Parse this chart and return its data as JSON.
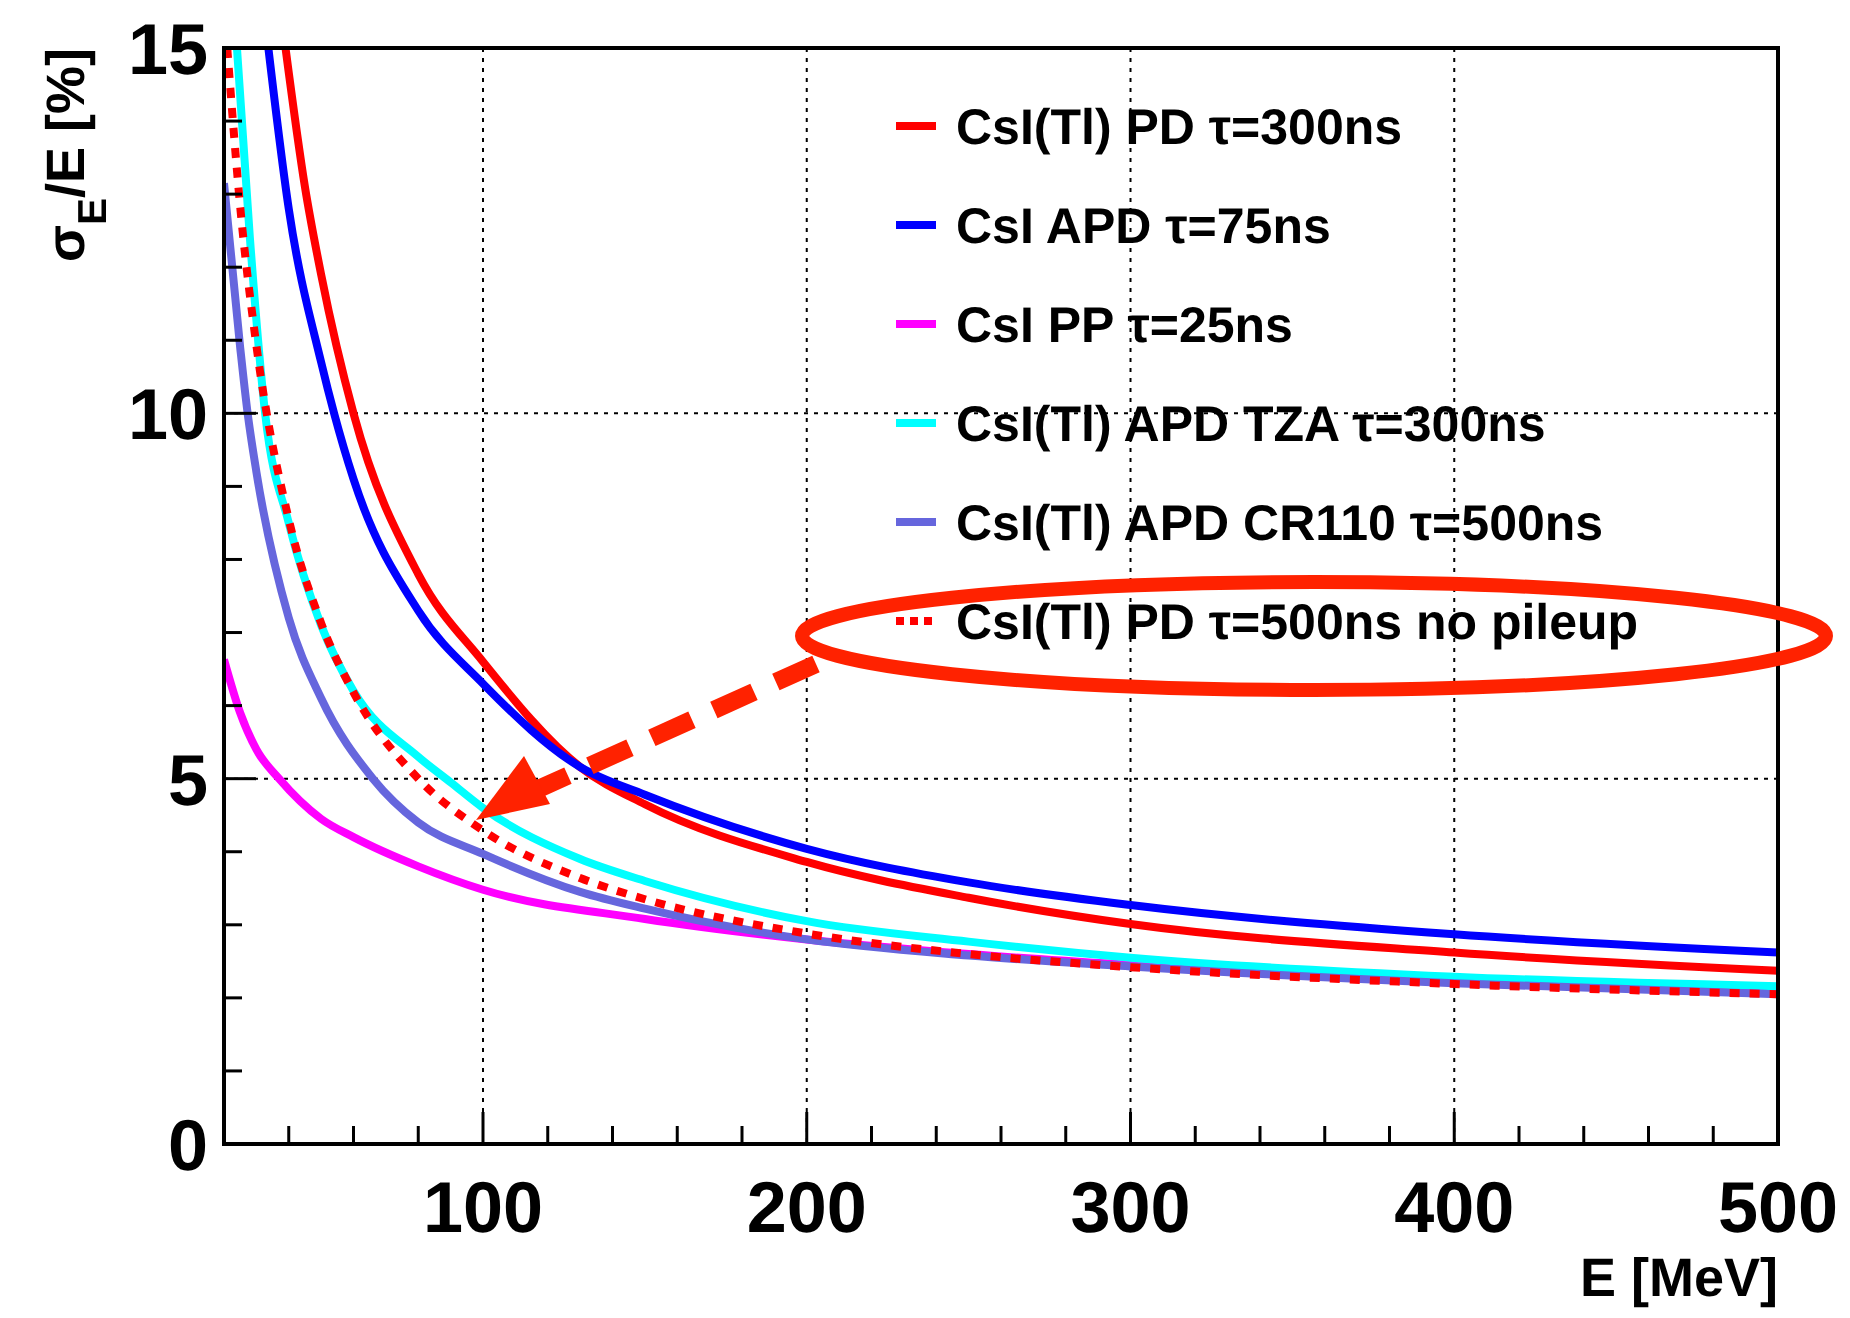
{
  "chart_data": {
    "type": "line",
    "xlabel": "E [MeV]",
    "ylabel": "σ$_{E}$/E [%]",
    "xlim": [
      20,
      500
    ],
    "ylim": [
      0,
      15
    ],
    "xticks": [
      {
        "value": 20,
        "label": null
      },
      {
        "value": 40,
        "label": null
      },
      {
        "value": 60,
        "label": null
      },
      {
        "value": 80,
        "label": null
      },
      100,
      {
        "value": 120,
        "label": null
      },
      {
        "value": 140,
        "label": null
      },
      {
        "value": 160,
        "label": null
      },
      {
        "value": 180,
        "label": null
      },
      200,
      {
        "value": 220,
        "label": null
      },
      {
        "value": 240,
        "label": null
      },
      {
        "value": 260,
        "label": null
      },
      {
        "value": 280,
        "label": null
      },
      300,
      {
        "value": 320,
        "label": null
      },
      {
        "value": 340,
        "label": null
      },
      {
        "value": 360,
        "label": null
      },
      {
        "value": 380,
        "label": null
      },
      400,
      {
        "value": 420,
        "label": null
      },
      {
        "value": 440,
        "label": null
      },
      {
        "value": 460,
        "label": null
      },
      {
        "value": 480,
        "label": null
      },
      500
    ],
    "yticks": [
      0,
      {
        "value": 1,
        "label": null
      },
      {
        "value": 2,
        "label": null
      },
      {
        "value": 3,
        "label": null
      },
      {
        "value": 4,
        "label": null
      },
      5,
      {
        "value": 6,
        "label": null
      },
      {
        "value": 7,
        "label": null
      },
      {
        "value": 8,
        "label": null
      },
      {
        "value": 9,
        "label": null
      },
      10,
      {
        "value": 11,
        "label": null
      },
      {
        "value": 12,
        "label": null
      },
      {
        "value": 13,
        "label": null
      },
      {
        "value": 14,
        "label": null
      },
      15
    ],
    "grid": true,
    "legend": "top right",
    "marker": "none",
    "series": [
      {
        "name": "CsI(Tl) PD τ=300ns",
        "color": "#ff0000",
        "line_style": "solid",
        "x": [
          39,
          45,
          50,
          60,
          80,
          100,
          130,
          150,
          200,
          250,
          300,
          400,
          500
        ],
        "values": [
          15,
          13.1,
          11.9,
          10,
          7.8,
          6.6,
          5.16,
          4.65,
          3.86,
          3.37,
          3.01,
          2.62,
          2.37
        ]
      },
      {
        "name": "CsI APD τ=75ns",
        "color": "#0000ff",
        "line_style": "solid",
        "x": [
          33.7,
          40,
          50,
          54,
          60,
          80,
          100,
          130,
          150,
          200,
          250,
          300,
          400,
          500
        ],
        "values": [
          15,
          12.8,
          10.7,
          10,
          9.1,
          7.3,
          6.3,
          5.16,
          4.78,
          4.04,
          3.58,
          3.27,
          2.87,
          2.62
        ]
      },
      {
        "name": "CsI PP τ=25ns",
        "color": "#ff00ff",
        "line_style": "solid",
        "x": [
          20,
          25,
          30,
          37,
          50,
          60,
          80,
          100,
          150,
          200,
          250,
          300,
          400,
          500
        ],
        "values": [
          6.63,
          5.9,
          5.4,
          5,
          4.45,
          4.2,
          3.8,
          3.48,
          3.08,
          2.8,
          2.6,
          2.45,
          2.22,
          2.06
        ]
      },
      {
        "name": "CsI(Tl) APD TZA τ=300ns",
        "color": "#00ffff",
        "line_style": "solid",
        "x": [
          24,
          28,
          32.7,
          40,
          50,
          60,
          80,
          90,
          100,
          130,
          150,
          200,
          250,
          300,
          400,
          500
        ],
        "values": [
          15,
          12.4,
          10,
          8.5,
          7.1,
          6.2,
          5.3,
          4.95,
          4.6,
          3.9,
          3.6,
          3.05,
          2.77,
          2.55,
          2.29,
          2.16
        ]
      },
      {
        "name": "CsI(Tl) APD CR110 τ=500ns",
        "color": "#6666dd",
        "line_style": "solid",
        "x": [
          20,
          25,
          27.3,
          30,
          40,
          50,
          66,
          80,
          100,
          130,
          150,
          200,
          250,
          300,
          400,
          500
        ],
        "values": [
          13.15,
          10.9,
          10,
          9.2,
          7.2,
          6.1,
          5,
          4.4,
          3.97,
          3.45,
          3.22,
          2.8,
          2.58,
          2.43,
          2.2,
          2.05
        ]
      },
      {
        "name": "CsI(Tl) PD τ=500ns no pileup",
        "color": "#ff0000",
        "line_style": "dotted",
        "x": [
          21,
          25,
          30,
          40,
          50,
          60,
          80,
          100,
          130,
          150,
          200,
          250,
          300,
          400,
          500
        ],
        "values": [
          15,
          12.83,
          10.93,
          8.55,
          7.13,
          6.18,
          5,
          4.29,
          3.64,
          3.35,
          2.88,
          2.6,
          2.42,
          2.19,
          2.05
        ]
      }
    ]
  }
}
